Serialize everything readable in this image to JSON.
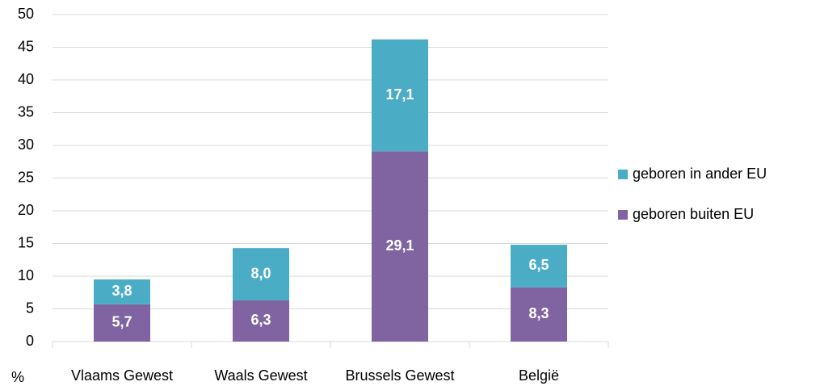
{
  "chart_data": {
    "type": "stacked_bar",
    "y_label": "%",
    "categories": [
      "Vlaams Gewest",
      "Waals Gewest",
      "Brussels Gewest",
      "België"
    ],
    "series": [
      {
        "name": "geboren buiten EU",
        "color": "#8064a2",
        "values": [
          5.7,
          6.3,
          29.1,
          8.3
        ],
        "value_labels": [
          "5,7",
          "6,3",
          "29,1",
          "8,3"
        ]
      },
      {
        "name": "geboren in ander EU",
        "color": "#4bacc6",
        "values": [
          3.8,
          8.0,
          17.1,
          6.5
        ],
        "value_labels": [
          "3,8",
          "8,0",
          "17,1",
          "6,5"
        ]
      }
    ],
    "ylim": [
      0,
      50
    ],
    "yticks": [
      0,
      5,
      10,
      15,
      20,
      25,
      30,
      35,
      40,
      45,
      50
    ],
    "grid": true,
    "legend": "right"
  }
}
